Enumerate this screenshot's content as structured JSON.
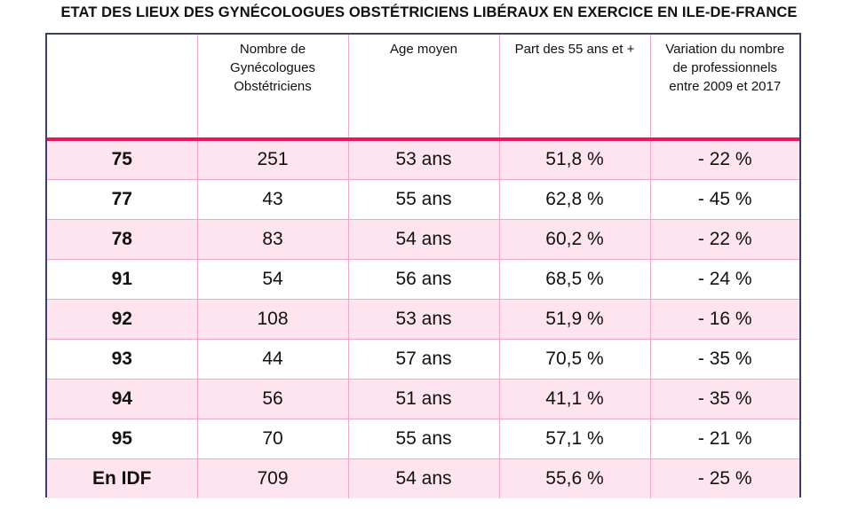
{
  "title": "ETAT DES LIEUX DES GYNÉCOLOGUES OBSTÉTRICIENS LIBÉRAUX EN EXERCICE EN ILE-DE-FRANCE",
  "columns": [
    "",
    "Nombre de Gynécologues Obstétriciens",
    "Age moyen",
    "Part des 55 ans et +",
    "Variation du nombre de professionnels entre 2009 et 2017"
  ],
  "rows": [
    [
      "75",
      "251",
      "53 ans",
      "51,8 %",
      "- 22 %"
    ],
    [
      "77",
      "43",
      "55 ans",
      "62,8 %",
      "- 45 %"
    ],
    [
      "78",
      "83",
      "54 ans",
      "60,2 %",
      "- 22 %"
    ],
    [
      "91",
      "54",
      "56 ans",
      "68,5 %",
      "- 24 %"
    ],
    [
      "92",
      "108",
      "53 ans",
      "51,9 %",
      "- 16 %"
    ],
    [
      "93",
      "44",
      "57 ans",
      "70,5 %",
      "- 35 %"
    ],
    [
      "94",
      "56",
      "51 ans",
      "41,1 %",
      "- 35 %"
    ],
    [
      "95",
      "70",
      "55 ans",
      "57,1 %",
      "- 21 %"
    ],
    [
      "En IDF",
      "709",
      "54 ans",
      "55,6 %",
      "- 25 %"
    ]
  ],
  "colors": {
    "header_rule": "#e6195f",
    "row_shade": "#fde4ef",
    "cell_border": "#f0a8c8",
    "frame_border": "#3a3f66"
  }
}
